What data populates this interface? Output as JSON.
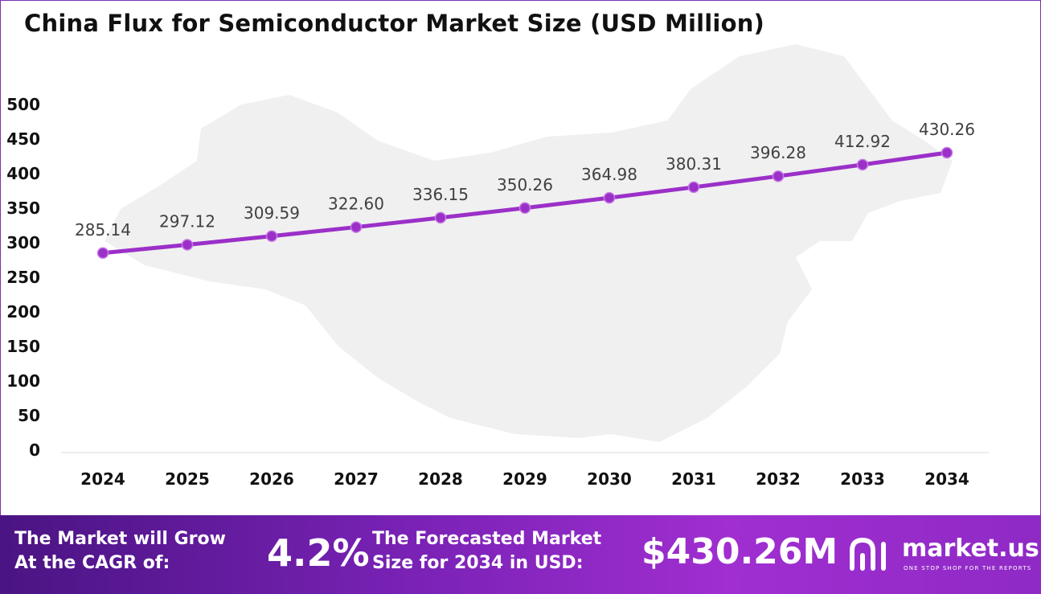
{
  "title": "China Flux for Semiconductor Market Size (USD Million)",
  "chart_data": {
    "type": "line",
    "title": "China Flux for Semiconductor Market Size (USD Million)",
    "categories": [
      "2024",
      "2025",
      "2026",
      "2027",
      "2028",
      "2029",
      "2030",
      "2031",
      "2032",
      "2033",
      "2034"
    ],
    "values": [
      285.14,
      297.12,
      309.59,
      322.6,
      336.15,
      350.26,
      364.98,
      380.31,
      396.28,
      412.92,
      430.26
    ],
    "value_labels": [
      "285.14",
      "297.12",
      "309.59",
      "322.60",
      "336.15",
      "350.26",
      "364.98",
      "380.31",
      "396.28",
      "412.92",
      "430.26"
    ],
    "y_ticks": [
      "0",
      "50",
      "100",
      "150",
      "200",
      "250",
      "300",
      "350",
      "400",
      "450",
      "500"
    ],
    "ylim": [
      0,
      500
    ],
    "grid": false,
    "line_color": "#9b30c8"
  },
  "footer": {
    "cagr_label_1": "The Market will Grow",
    "cagr_label_2": "At the CAGR of:",
    "cagr_value": "4.2%",
    "forecast_label_1": "The Forecasted Market",
    "forecast_label_2": "Size for 2034 in USD:",
    "forecast_value": "$430.26M",
    "brand_name": "market.us",
    "brand_tagline": "ONE STOP SHOP FOR THE REPORTS",
    "brand_icon": "market-us-logo-icon"
  }
}
